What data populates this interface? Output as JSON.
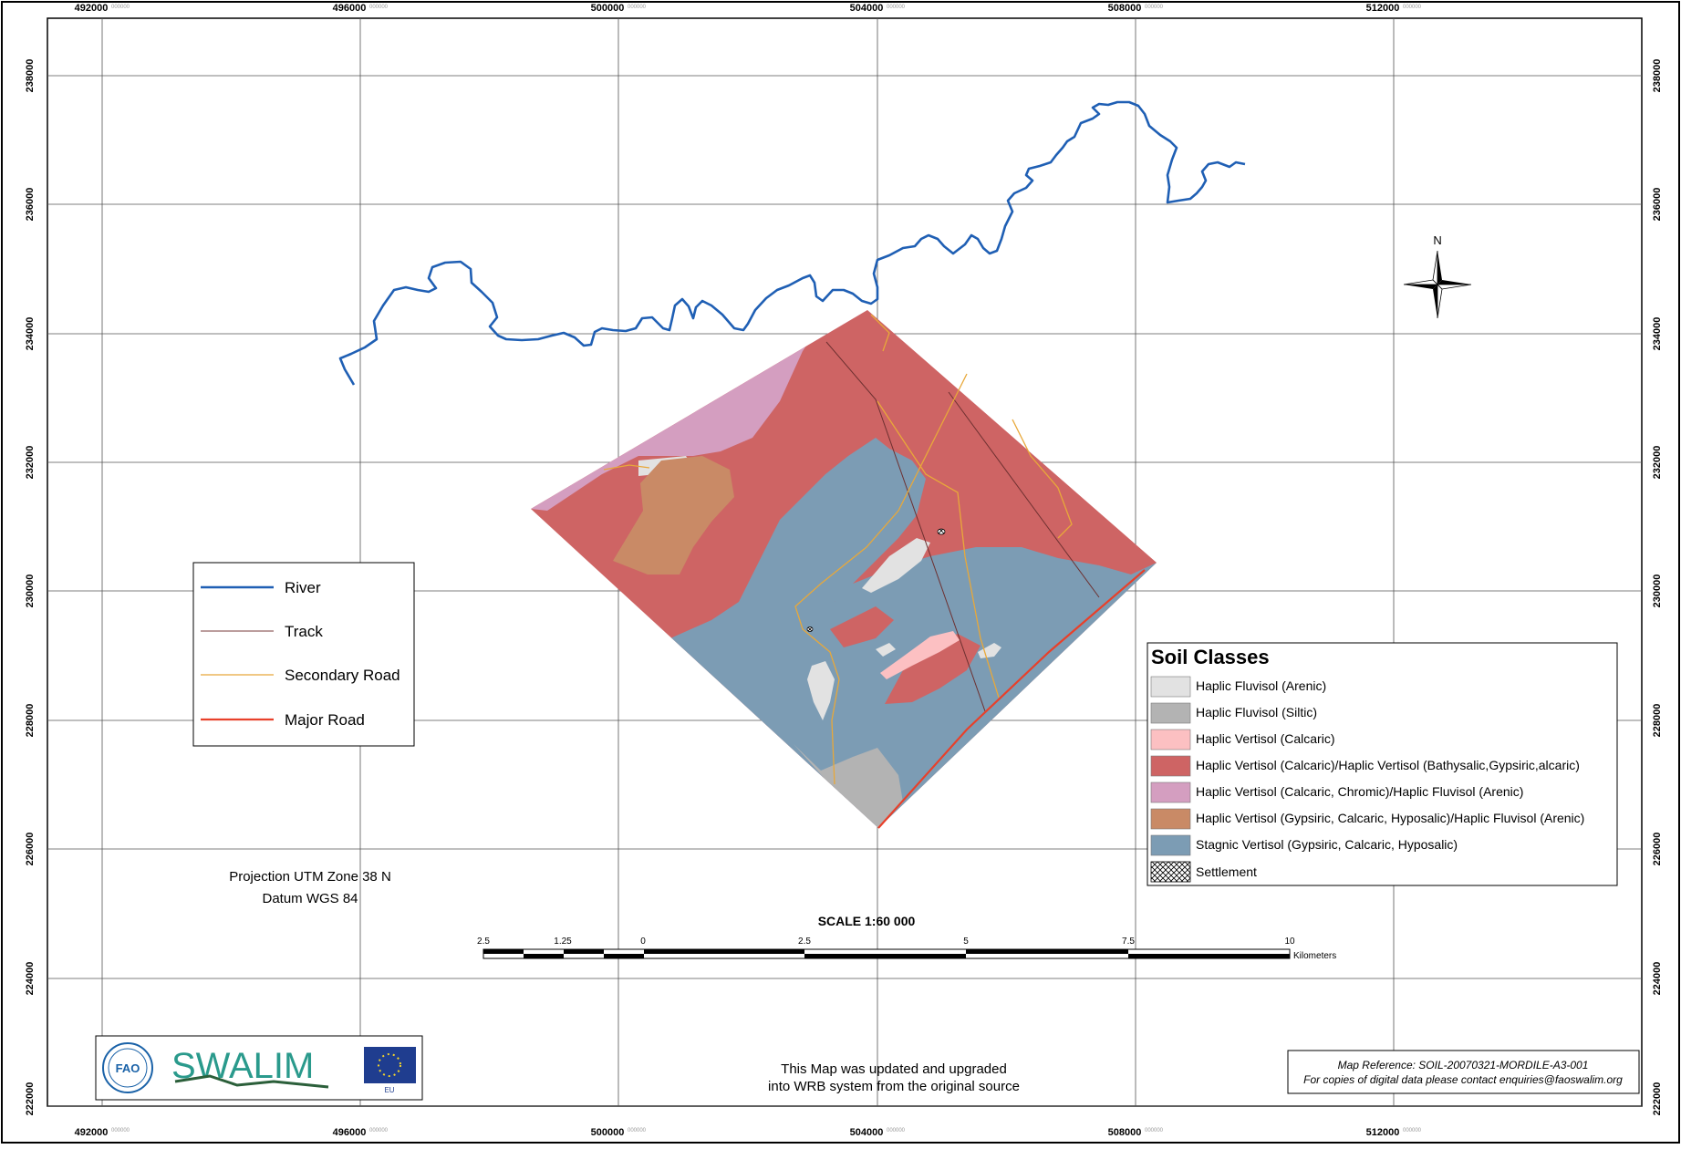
{
  "map": {
    "grid": {
      "x_labels": [
        "492000",
        "496000",
        "500000",
        "504000",
        "508000",
        "512000"
      ],
      "y_labels": [
        "238000",
        "236000",
        "234000",
        "232000",
        "230000",
        "228000",
        "226000",
        "224000",
        "222000"
      ],
      "label_suffix": "000000"
    },
    "line_legend": {
      "items": [
        {
          "label": "River",
          "color": "#1f5fb4"
        },
        {
          "label": "Track",
          "color": "#7a3b3b"
        },
        {
          "label": "Secondary Road",
          "color": "#e8a83a"
        },
        {
          "label": "Major Road",
          "color": "#e8402a"
        }
      ]
    },
    "soil_legend": {
      "title": "Soil Classes",
      "items": [
        {
          "label": "Haplic Fluvisol (Arenic)",
          "color": "#e2e2e2"
        },
        {
          "label": "Haplic Fluvisol (Siltic)",
          "color": "#b3b3b3"
        },
        {
          "label": "Haplic Vertisol (Calcaric)",
          "color": "#fcc0c2"
        },
        {
          "label": "Haplic Vertisol (Calcaric)/Haplic Vertisol (Bathysalic,Gypsiric,alcaric)",
          "color": "#ce6464"
        },
        {
          "label": "Haplic Vertisol (Calcaric, Chromic)/Haplic Fluvisol (Arenic)",
          "color": "#d49ec0"
        },
        {
          "label": "Haplic Vertisol (Gypsiric, Calcaric, Hyposalic)/Haplic Fluvisol (Arenic)",
          "color": "#c98a66"
        },
        {
          "label": "Stagnic Vertisol (Gypsiric, Calcaric, Hyposalic)",
          "color": "#7c9cb4"
        },
        {
          "label": "Settlement",
          "color": "hatch"
        }
      ]
    },
    "north_label": "N",
    "projection": {
      "line1": "Projection UTM Zone 38 N",
      "line2": "Datum WGS 84"
    },
    "scale": {
      "title": "SCALE 1:60 000",
      "ticks": [
        "2.5",
        "1.25",
        "0",
        "2.5",
        "5",
        "7.5",
        "10"
      ],
      "unit": "Kilometers"
    },
    "logos": {
      "fao": "FAO",
      "swalim": "SWALIM",
      "eu": "EU"
    },
    "update_note": {
      "line1": "This Map was updated and upgraded",
      "line2": "into WRB system from the original source"
    },
    "reference": {
      "line1": "Map Reference: SOIL-20070321-MORDILE-A3-001",
      "line2": "For copies of digital data please contact enquiries@faoswalim.org"
    }
  }
}
